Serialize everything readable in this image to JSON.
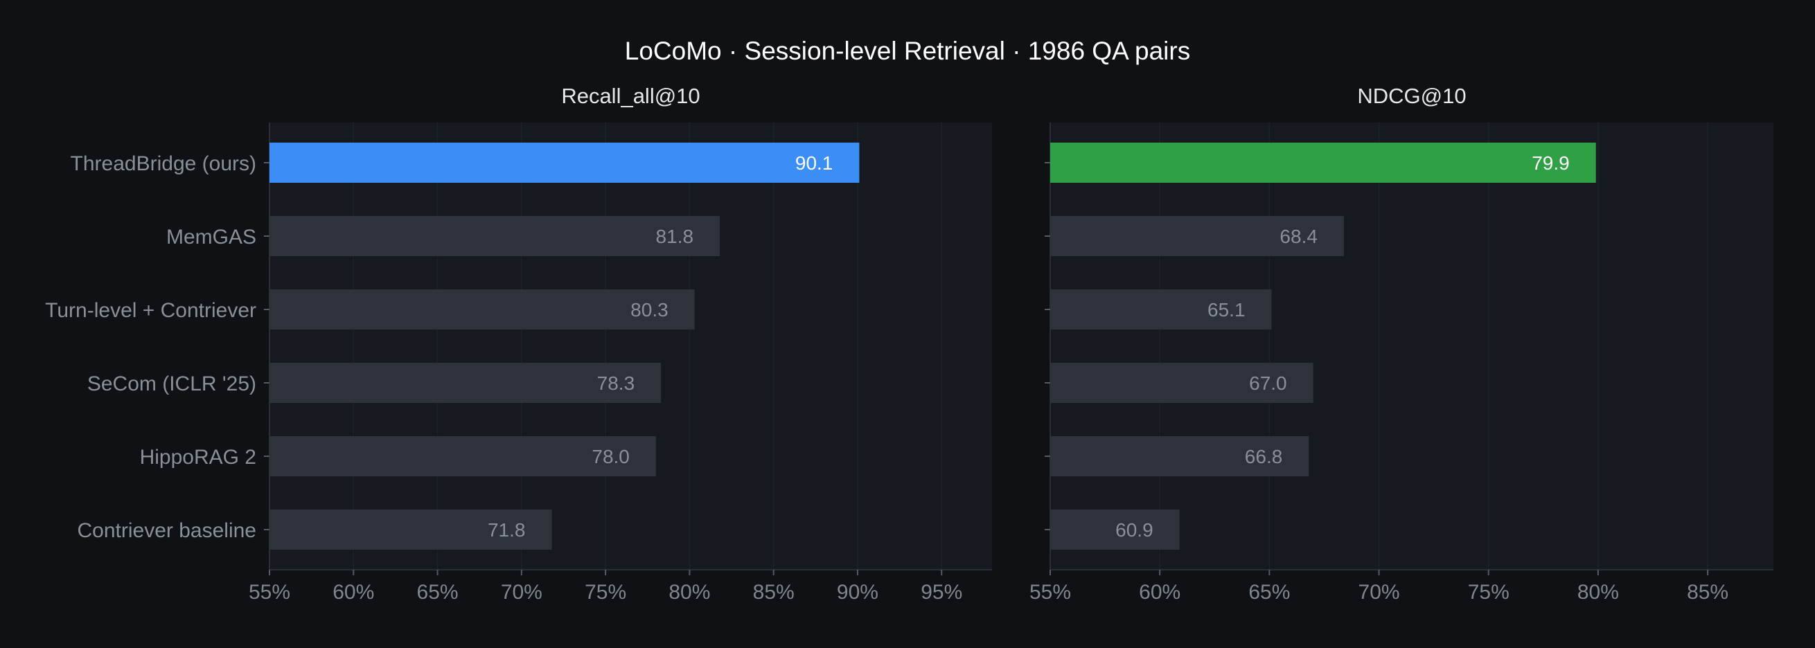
{
  "title": "LoCoMo  ·  Session-level Retrieval  ·  1986 QA pairs",
  "colors": {
    "background": "#0f1115",
    "panel": "#161a20",
    "grid": "#1d2229",
    "bar_default": "#2e333b",
    "bar_highlight_recall": "#3a8ef6",
    "bar_highlight_ndcg": "#2fa045",
    "label_muted": "#8a9099",
    "label_bright": "#ffffff",
    "axis_text": "#7f8690",
    "title_text": "#ffffff",
    "subtitle_text": "#e6e8eb"
  },
  "chart_data": [
    {
      "type": "bar",
      "orientation": "horizontal",
      "title": "Recall_all@10",
      "categories": [
        "ThreadBridge (ours)",
        "MemGAS",
        "Turn-level + Contriever",
        "SeCom (ICLR '25)",
        "HippoRAG 2",
        "Contriever baseline"
      ],
      "values": [
        90.1,
        81.8,
        80.3,
        78.3,
        78.0,
        71.8
      ],
      "value_labels": [
        "90.1",
        "81.8",
        "80.3",
        "78.3",
        "78.0",
        "71.8"
      ],
      "highlight_index": 0,
      "xlim": [
        55,
        98
      ],
      "xticks": [
        55,
        60,
        65,
        70,
        75,
        80,
        85,
        90,
        95
      ],
      "xtick_labels": [
        "55%",
        "60%",
        "65%",
        "70%",
        "75%",
        "80%",
        "85%",
        "90%",
        "95%"
      ],
      "grid": true
    },
    {
      "type": "bar",
      "orientation": "horizontal",
      "title": "NDCG@10",
      "categories": [
        "ThreadBridge (ours)",
        "MemGAS",
        "Turn-level + Contriever",
        "SeCom (ICLR '25)",
        "HippoRAG 2",
        "Contriever baseline"
      ],
      "values": [
        79.9,
        68.4,
        65.1,
        67.0,
        66.8,
        60.9
      ],
      "value_labels": [
        "79.9",
        "68.4",
        "65.1",
        "67.0",
        "66.8",
        "60.9"
      ],
      "highlight_index": 0,
      "xlim": [
        55,
        88
      ],
      "xticks": [
        55,
        60,
        65,
        70,
        75,
        80,
        85
      ],
      "xtick_labels": [
        "55%",
        "60%",
        "65%",
        "70%",
        "75%",
        "80%",
        "85%"
      ],
      "grid": true
    }
  ]
}
